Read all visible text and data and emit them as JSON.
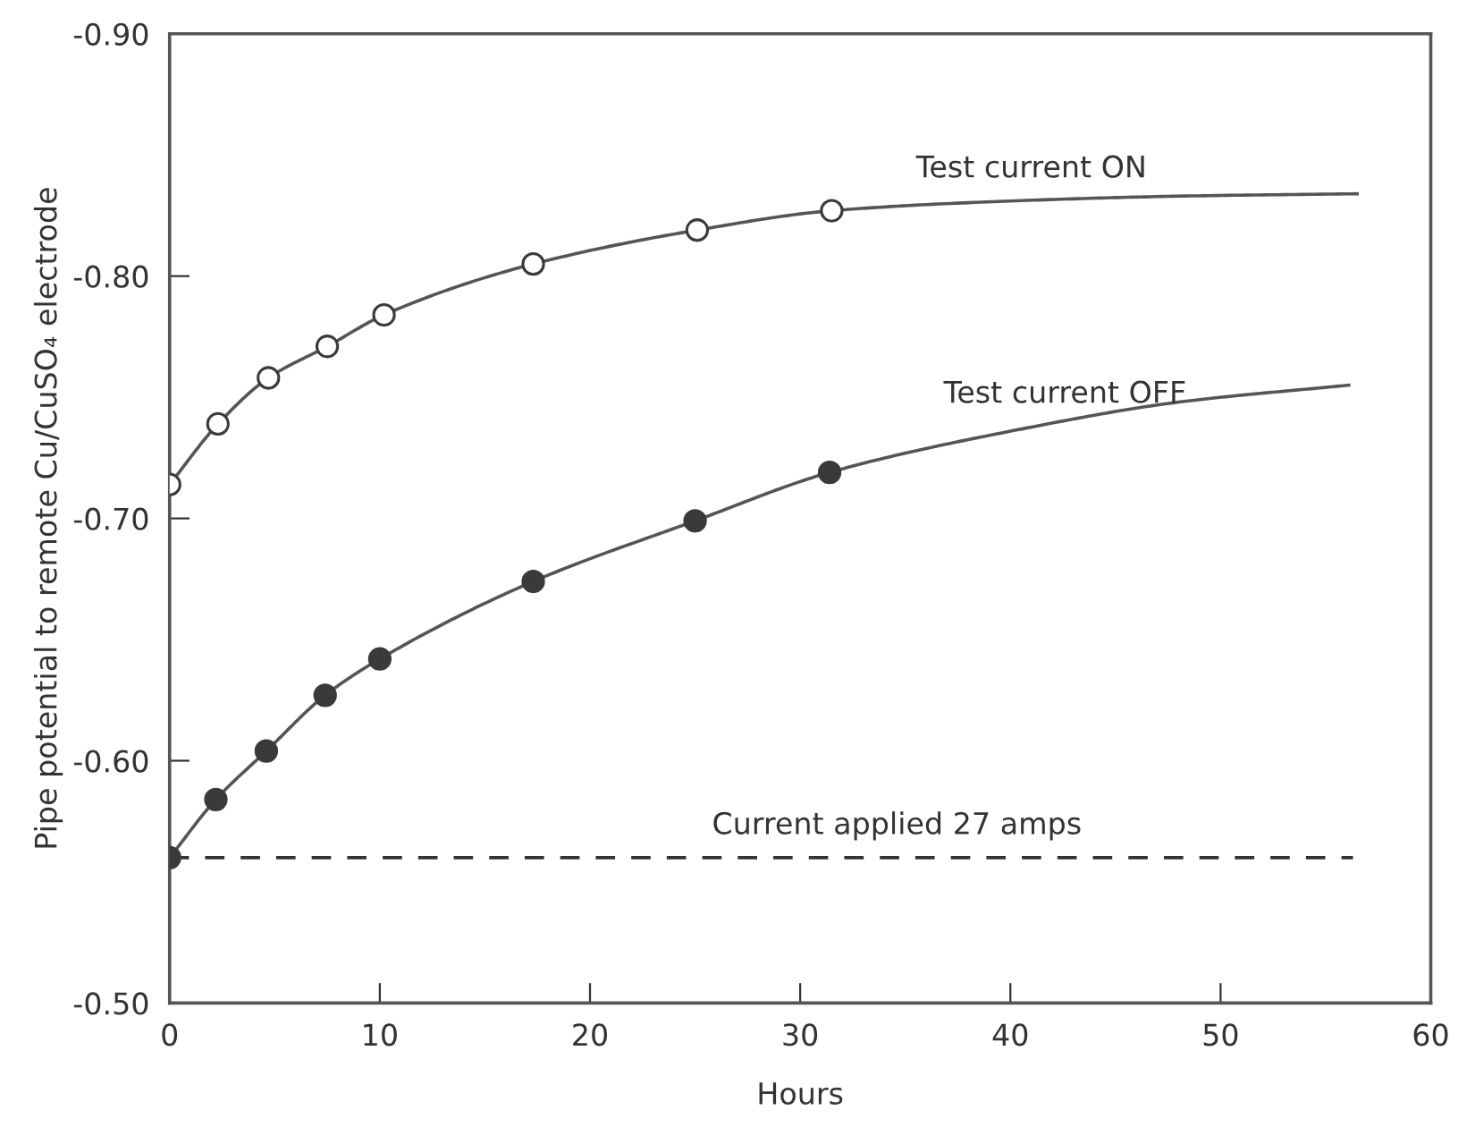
{
  "chart_data": {
    "type": "line",
    "xlabel": "Hours",
    "ylabel": "Pipe potential to remote Cu/CuSO₄ electrode",
    "xlim": [
      0,
      60
    ],
    "xticks": [
      0,
      10,
      20,
      30,
      40,
      50,
      60
    ],
    "ylim": [
      -0.5,
      -0.9
    ],
    "yticks": [
      {
        "value": -0.5,
        "label": "-0.50"
      },
      {
        "value": -0.6,
        "label": "-0.60"
      },
      {
        "value": -0.7,
        "label": "-0.70"
      },
      {
        "value": -0.8,
        "label": "-0.80"
      },
      {
        "value": -0.9,
        "label": "-0.90"
      }
    ],
    "grid": false,
    "legend": false,
    "series": [
      {
        "color": "#555555",
        "marker": "none",
        "line_style": "solid",
        "x": [
          0,
          2.3,
          4.7,
          7.5,
          10.2,
          17.3,
          25.1,
          31.5,
          40,
          48,
          56.5
        ],
        "values": [
          -0.714,
          -0.739,
          -0.758,
          -0.771,
          -0.784,
          -0.805,
          -0.819,
          -0.827,
          -0.831,
          -0.833,
          -0.834
        ]
      },
      {
        "color": "#555555",
        "marker": "none",
        "line_style": "solid",
        "x": [
          0,
          2.2,
          4.6,
          7.4,
          10.0,
          17.3,
          25.0,
          31.4,
          40,
          48,
          56.1
        ],
        "values": [
          -0.56,
          -0.584,
          -0.604,
          -0.627,
          -0.642,
          -0.674,
          -0.699,
          -0.719,
          -0.736,
          -0.748,
          -0.755
        ]
      },
      {
        "color": "#333333",
        "marker": "none",
        "line_style": "dashed",
        "x": [
          0,
          56.3
        ],
        "values": [
          -0.56,
          -0.56
        ]
      },
      {
        "type": "scatter",
        "color": "#ffffff",
        "marker": "circle",
        "x": [
          0,
          2.3,
          4.7,
          7.5,
          10.2,
          17.3,
          25.1,
          31.5
        ],
        "values": [
          -0.714,
          -0.739,
          -0.758,
          -0.771,
          -0.784,
          -0.805,
          -0.819,
          -0.827
        ]
      },
      {
        "type": "scatter",
        "color": "#3a3a3a",
        "marker": "circle",
        "x": [
          0,
          2.2,
          4.6,
          7.4,
          10.0,
          17.3,
          25.0,
          31.4
        ],
        "values": [
          -0.56,
          -0.584,
          -0.604,
          -0.627,
          -0.642,
          -0.674,
          -0.699,
          -0.719
        ]
      }
    ],
    "annotations": [
      {
        "text": "Test current ON",
        "x": 41,
        "y": -0.831
      },
      {
        "text": "Test current OFF",
        "x": 42.6,
        "y": -0.738
      },
      {
        "text": "Current applied 27 amps",
        "x": 34.6,
        "y": -0.56
      }
    ]
  }
}
